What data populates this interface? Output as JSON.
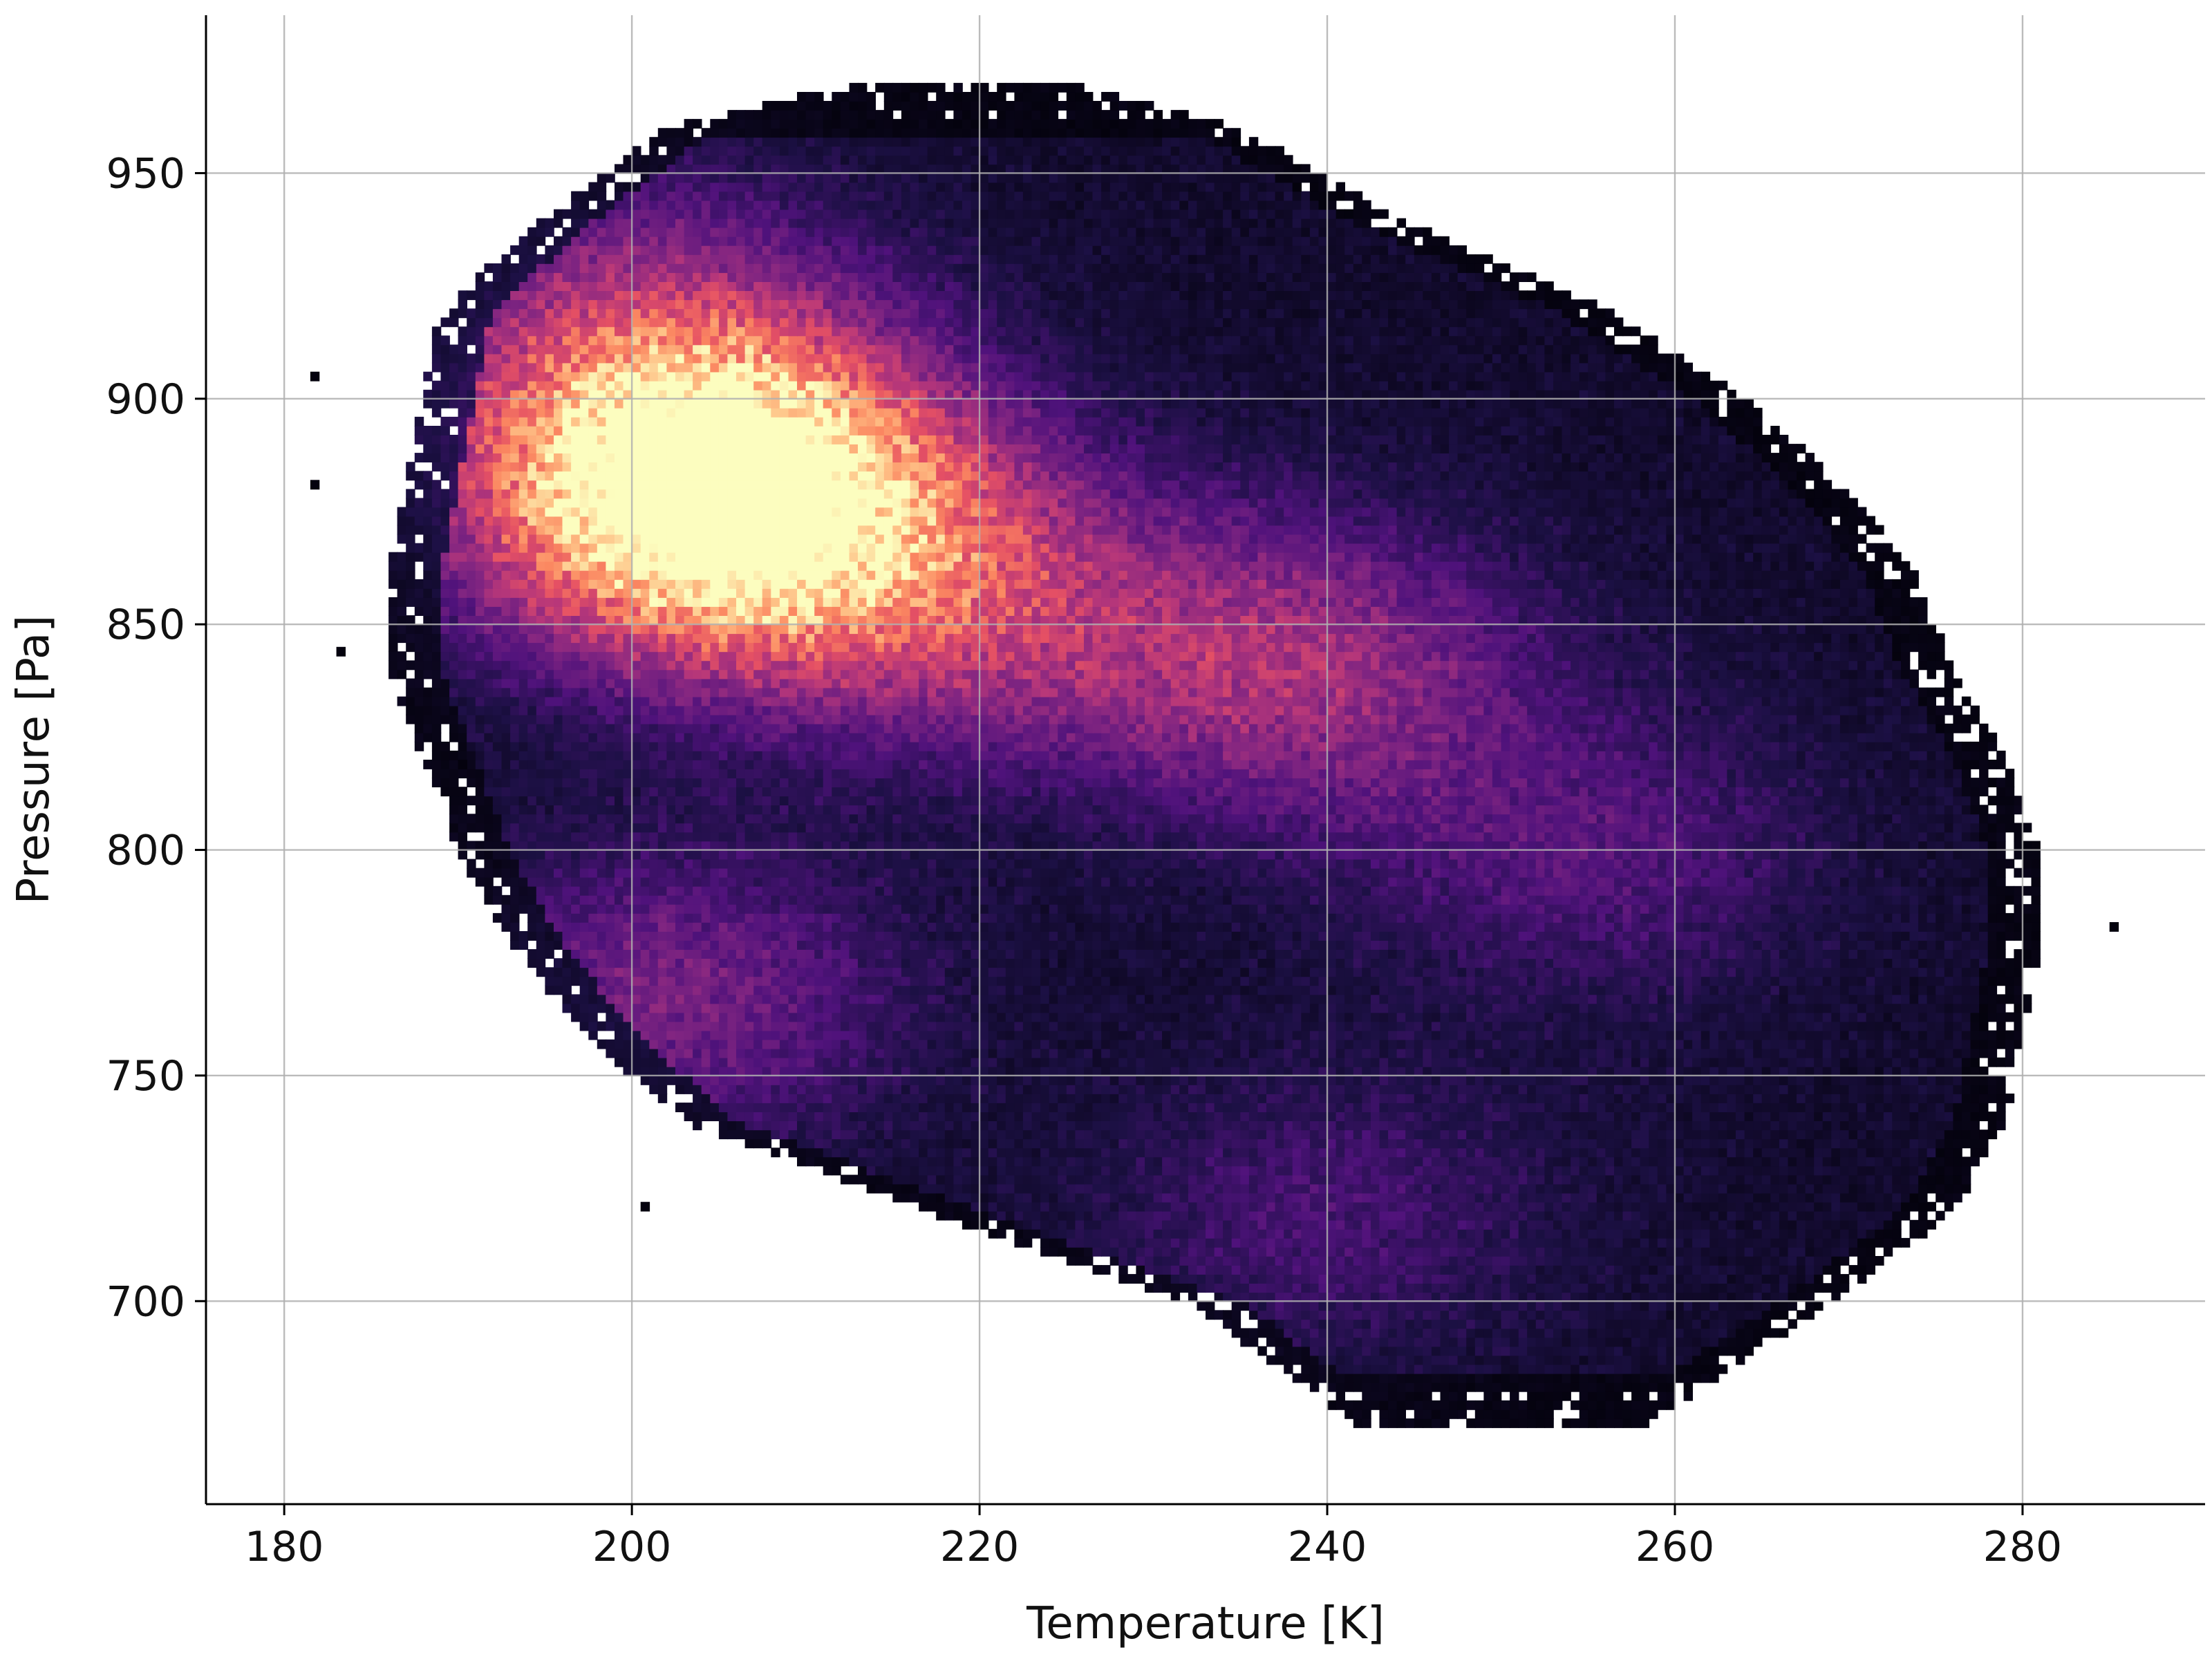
{
  "chart_data": {
    "type": "heatmap",
    "title": "",
    "xlabel": "Temperature [K]",
    "ylabel": "Pressure [Pa]",
    "xlim": [
      175.5,
      290.5
    ],
    "ylim": [
      655,
      985
    ],
    "xticks": [
      180,
      200,
      220,
      240,
      260,
      280
    ],
    "yticks": [
      700,
      750,
      800,
      850,
      900,
      950
    ],
    "grid": true,
    "colormap": "magma",
    "colorbar": false,
    "bins": {
      "x_width": 0.5,
      "y_width": 2.0
    },
    "support": {
      "pressure_rows": [
        672,
        700,
        720,
        740,
        760,
        780,
        800,
        820,
        840,
        860,
        880,
        900,
        920,
        940,
        960,
        970
      ],
      "temperature_min": [
        242,
        232,
        217,
        203,
        197,
        193,
        190,
        188,
        186,
        186,
        187,
        188,
        189,
        195,
        202,
        213
      ],
      "temperature_max": [
        258,
        269,
        276,
        279,
        280,
        281,
        281,
        279,
        276,
        274,
        270,
        264,
        256,
        244,
        235,
        225
      ]
    },
    "density_peaks": [
      {
        "temperature": 206,
        "pressure": 873,
        "intensity": 1.0
      },
      {
        "temperature": 203,
        "pressure": 888,
        "intensity": 0.75
      },
      {
        "temperature": 238,
        "pressure": 840,
        "intensity": 0.45
      },
      {
        "temperature": 220,
        "pressure": 855,
        "intensity": 0.4
      },
      {
        "temperature": 202,
        "pressure": 768,
        "intensity": 0.33
      },
      {
        "temperature": 200,
        "pressure": 920,
        "intensity": 0.3
      },
      {
        "temperature": 255,
        "pressure": 800,
        "intensity": 0.22
      },
      {
        "temperature": 240,
        "pressure": 720,
        "intensity": 0.18
      }
    ],
    "outlier_cells": [
      {
        "temperature": 181.5,
        "pressure": 904
      },
      {
        "temperature": 181.5,
        "pressure": 880
      },
      {
        "temperature": 183,
        "pressure": 843
      },
      {
        "temperature": 190,
        "pressure": 818
      },
      {
        "temperature": 200.5,
        "pressure": 720
      },
      {
        "temperature": 285,
        "pressure": 782
      },
      {
        "temperature": 280,
        "pressure": 800
      }
    ]
  }
}
